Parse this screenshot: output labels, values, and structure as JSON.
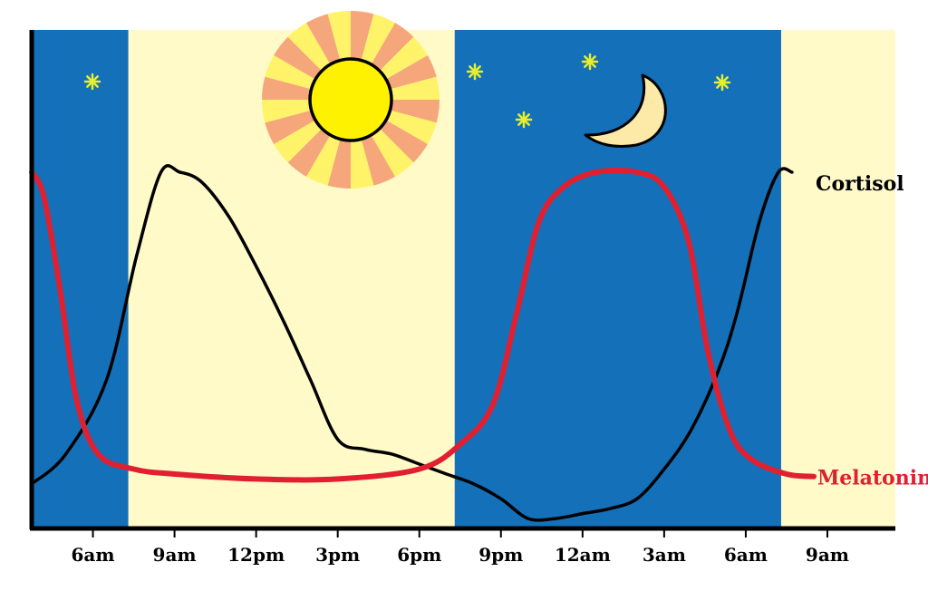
{
  "chart_data": {
    "type": "line",
    "x_unit": "hour of day",
    "xlim": [
      3.75,
      35.5
    ],
    "ylim": [
      0,
      100
    ],
    "tick_labels": [
      {
        "x": 6,
        "label": "6am"
      },
      {
        "x": 9,
        "label": "9am"
      },
      {
        "x": 12,
        "label": "12pm"
      },
      {
        "x": 15,
        "label": "3pm"
      },
      {
        "x": 18,
        "label": "6pm"
      },
      {
        "x": 21,
        "label": "9pm"
      },
      {
        "x": 24,
        "label": "12am"
      },
      {
        "x": 27,
        "label": "3am"
      },
      {
        "x": 30,
        "label": "6am"
      },
      {
        "x": 33,
        "label": "9am"
      }
    ],
    "night_bands": [
      [
        3.75,
        7.3
      ],
      [
        19.3,
        31.3
      ]
    ],
    "series": [
      {
        "name": "Cortisol",
        "color": "#000000",
        "x": [
          3.75,
          5,
          6.5,
          7.6,
          8.5,
          9.2,
          10,
          11,
          12,
          13,
          14,
          15,
          16,
          17,
          18,
          19,
          20,
          21,
          22,
          23,
          24,
          25,
          26,
          27,
          28,
          29,
          29.7,
          30.5,
          31.2,
          31.7
        ],
        "y": [
          9,
          15,
          30,
          55,
          72,
          72,
          70,
          63,
          53,
          42,
          30,
          18,
          16,
          15,
          13,
          11,
          9,
          6,
          2,
          2,
          3,
          4,
          6,
          12,
          20,
          32,
          44,
          62,
          72,
          72
        ]
      },
      {
        "name": "Melatonin",
        "color": "#e02030",
        "x": [
          3.75,
          4.2,
          4.8,
          5.4,
          6.2,
          7.5,
          9,
          12,
          15,
          18,
          19.5,
          20.7,
          21.6,
          22.4,
          23.3,
          24.5,
          26,
          27,
          27.9,
          28.6,
          29.4,
          30.2,
          31.5,
          32.5
        ],
        "y": [
          72,
          67,
          48,
          26,
          15,
          12,
          11,
          10,
          10,
          12,
          17,
          25,
          44,
          62,
          69,
          72,
          72,
          69,
          58,
          36,
          20,
          14,
          11,
          10.5
        ]
      }
    ]
  }
}
